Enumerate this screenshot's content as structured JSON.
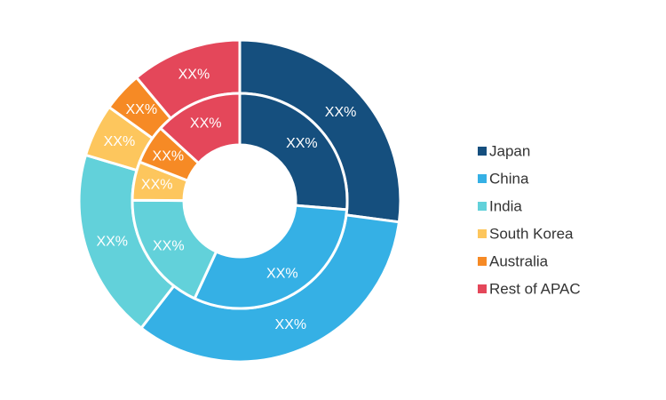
{
  "chart_data": {
    "type": "pie",
    "subtype": "double-donut",
    "title": "",
    "legend_position": "right",
    "categories": [
      "Japan",
      "China",
      "India",
      "South Korea",
      "Australia",
      "Rest of APAC"
    ],
    "colors": [
      "#154f7e",
      "#35b0e5",
      "#62d1da",
      "#fdc65d",
      "#f68a25",
      "#e4475a"
    ],
    "series": [
      {
        "ring": "outer",
        "values": [
          27.1,
          33.4,
          19.1,
          5.3,
          4.0,
          11.1
        ],
        "labels": [
          "XX%",
          "XX%",
          "XX%",
          "XX%",
          "XX%",
          "XX%"
        ]
      },
      {
        "ring": "inner",
        "values": [
          26.3,
          30.6,
          18.2,
          5.8,
          5.9,
          13.2
        ],
        "labels": [
          "XX%",
          "XX%",
          "XX%",
          "XX%",
          "XX%",
          "XX%"
        ]
      }
    ]
  }
}
